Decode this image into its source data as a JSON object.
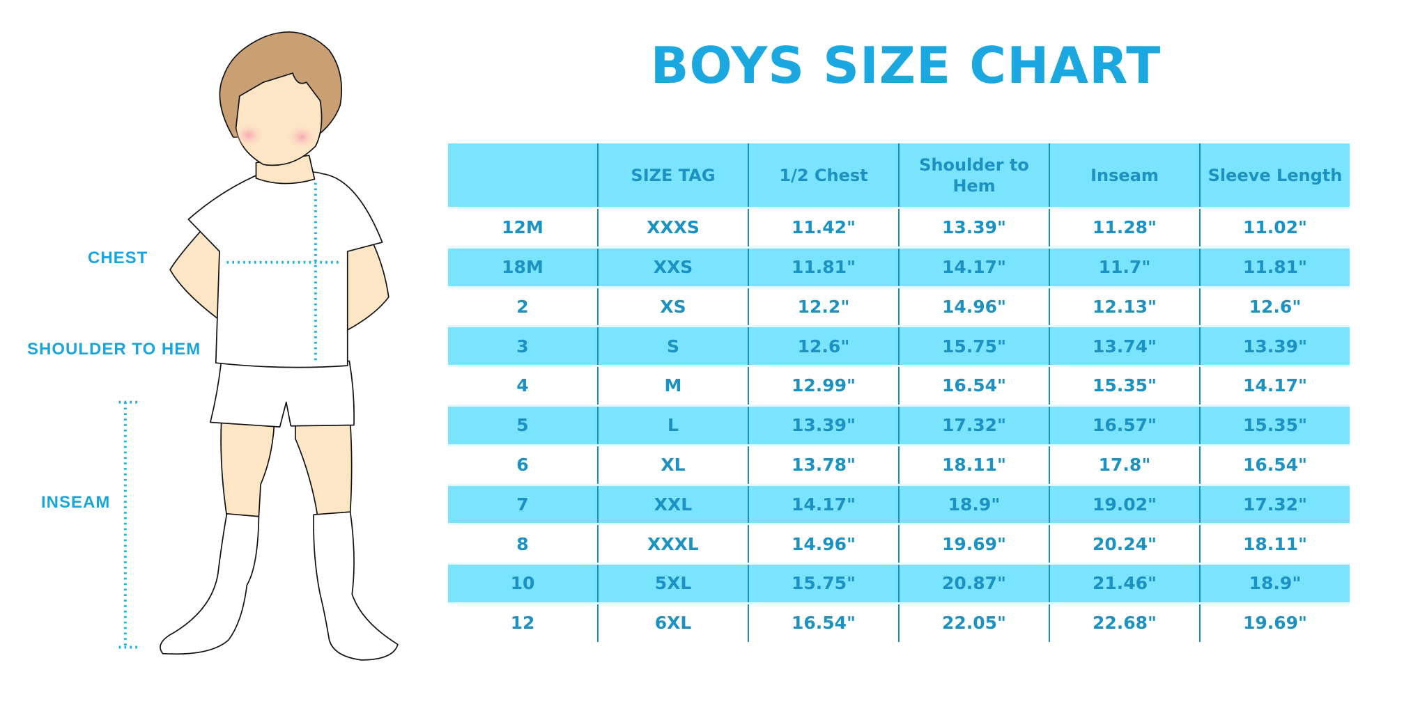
{
  "title": "BOYS SIZE CHART",
  "measure_labels": {
    "chest": "CHEST",
    "shoulder_to_hem": "SHOULDER TO HEM",
    "inseam": "INSEAM"
  },
  "colors": {
    "accent": "#1ba8e0",
    "header_bg": "#7ae3fd",
    "text": "#1b92c2"
  },
  "table": {
    "headers": [
      "",
      "SIZE TAG",
      "1/2 Chest",
      "Shoulder to Hem",
      "Inseam",
      "Sleeve Length"
    ],
    "rows": [
      [
        "12M",
        "XXXS",
        "11.42\"",
        "13.39\"",
        "11.28\"",
        "11.02\""
      ],
      [
        "18M",
        "XXS",
        "11.81\"",
        "14.17\"",
        "11.7\"",
        "11.81\""
      ],
      [
        "2",
        "XS",
        "12.2\"",
        "14.96\"",
        "12.13\"",
        "12.6\""
      ],
      [
        "3",
        "S",
        "12.6\"",
        "15.75\"",
        "13.74\"",
        "13.39\""
      ],
      [
        "4",
        "M",
        "12.99\"",
        "16.54\"",
        "15.35\"",
        "14.17\""
      ],
      [
        "5",
        "L",
        "13.39\"",
        "17.32\"",
        "16.57\"",
        "15.35\""
      ],
      [
        "6",
        "XL",
        "13.78\"",
        "18.11\"",
        "17.8\"",
        "16.54\""
      ],
      [
        "7",
        "XXL",
        "14.17\"",
        "18.9\"",
        "19.02\"",
        "17.32\""
      ],
      [
        "8",
        "XXXL",
        "14.96\"",
        "19.69\"",
        "20.24\"",
        "18.11\""
      ],
      [
        "10",
        "5XL",
        "15.75\"",
        "20.87\"",
        "21.46\"",
        "18.9\""
      ],
      [
        "12",
        "6XL",
        "16.54\"",
        "22.05\"",
        "22.68\"",
        "19.69\""
      ]
    ]
  }
}
